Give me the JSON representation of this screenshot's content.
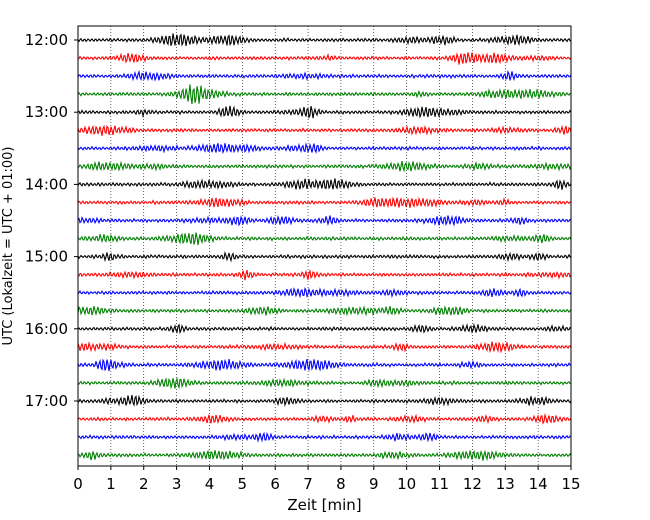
{
  "chart_data": {
    "type": "line",
    "title": "",
    "xlabel": "Zeit  [min]",
    "ylabel": "UTC (Lokalzeit = UTC + 01:00)",
    "xlim": [
      0,
      15
    ],
    "x_ticks": [
      "0",
      "1",
      "2",
      "3",
      "4",
      "5",
      "6",
      "7",
      "8",
      "9",
      "10",
      "11",
      "12",
      "13",
      "14",
      "15"
    ],
    "y_tick_labels": [
      "12:00",
      "13:00",
      "14:00",
      "15:00",
      "16:00",
      "17:00"
    ],
    "grid": "vertical dotted lines at each minute",
    "trace_colors": [
      "#000000",
      "#ff0000",
      "#0000ff",
      "#008000"
    ],
    "trace_start_times": [
      "12:00",
      "12:15",
      "12:30",
      "12:45",
      "13:00",
      "13:15",
      "13:30",
      "13:45",
      "14:00",
      "14:15",
      "14:30",
      "14:45",
      "15:00",
      "15:15",
      "15:30",
      "15:45",
      "16:00",
      "16:15",
      "16:30",
      "16:45",
      "17:00",
      "17:15",
      "17:30",
      "17:45"
    ]
  }
}
